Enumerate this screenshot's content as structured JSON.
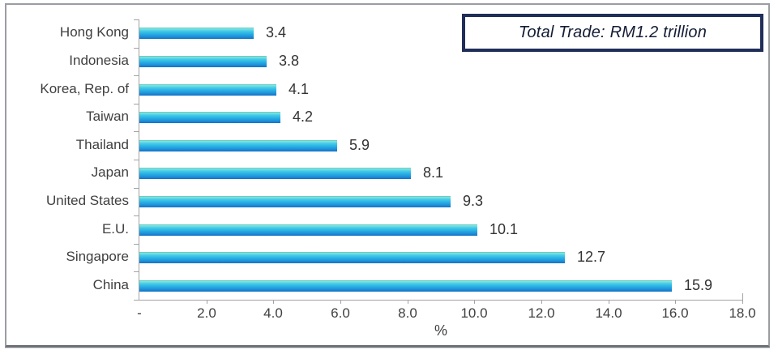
{
  "callout": {
    "text": "Total Trade: RM1.2 trillion",
    "border_color": "#1f2d58",
    "text_color": "#141c35"
  },
  "chart_data": {
    "type": "bar",
    "orientation": "horizontal",
    "title": "",
    "categories": [
      "Hong Kong",
      "Indonesia",
      "Korea, Rep. of",
      "Taiwan",
      "Thailand",
      "Japan",
      "United States",
      "E.U.",
      "Singapore",
      "China"
    ],
    "values": [
      3.4,
      3.8,
      4.1,
      4.2,
      5.9,
      8.1,
      9.3,
      10.1,
      12.7,
      15.9
    ],
    "value_labels": [
      "3.4",
      "3.8",
      "4.1",
      "4.2",
      "5.9",
      "8.1",
      "9.3",
      "10.1",
      "12.7",
      "15.9"
    ],
    "xlabel": "%",
    "xlim": [
      0,
      18
    ],
    "xtick_values": [
      0,
      2,
      4,
      6,
      8,
      10,
      12,
      14,
      16,
      18
    ],
    "xtick_labels": [
      "-",
      "2.0",
      "4.0",
      "6.0",
      "8.0",
      "10.0",
      "12.0",
      "14.0",
      "16.0",
      "18.0"
    ],
    "grid": false,
    "legend": "none",
    "bar_gradient": [
      "#4cc8bc",
      "#8ae2dc",
      "#44cbe8",
      "#2ab4e4",
      "#2097dc",
      "#1a80d0"
    ],
    "axis_color": "#a3a3a3",
    "label_color": "#3f3f3f"
  }
}
